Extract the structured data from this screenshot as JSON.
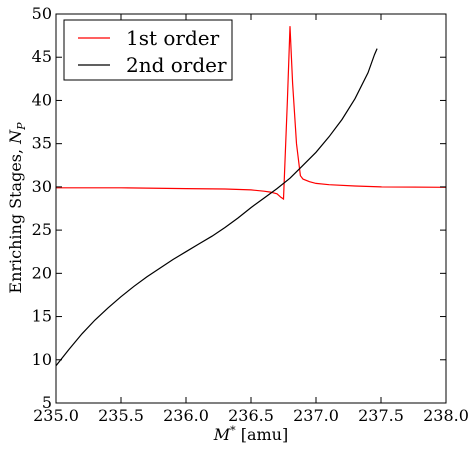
{
  "chart_data": {
    "type": "line",
    "title": "",
    "xlabel": {
      "symbol": "M",
      "sup": "*",
      "unit": " [amu]"
    },
    "ylabel": {
      "text": "Enriching Stages, ",
      "symbol": "N",
      "sub": "P"
    },
    "xlim": [
      235.0,
      238.0
    ],
    "ylim": [
      5,
      50
    ],
    "xticks": [
      235.0,
      235.5,
      236.0,
      236.5,
      237.0,
      237.5,
      238.0
    ],
    "xtick_labels": [
      "235.0",
      "235.5",
      "236.0",
      "236.5",
      "237.0",
      "237.5",
      "238.0"
    ],
    "yticks": [
      5,
      10,
      15,
      20,
      25,
      30,
      35,
      40,
      45,
      50
    ],
    "ytick_labels": [
      "5",
      "10",
      "15",
      "20",
      "25",
      "30",
      "35",
      "40",
      "45",
      "50"
    ],
    "grid": false,
    "legend_position": "top-left",
    "series": [
      {
        "name": "1st order",
        "color": "#ff0000",
        "x": [
          235.0,
          235.5,
          236.0,
          236.3,
          236.5,
          236.6,
          236.65,
          236.7,
          236.73,
          236.75,
          236.78,
          236.8,
          236.82,
          236.85,
          236.88,
          236.9,
          236.95,
          237.0,
          237.1,
          237.3,
          237.5,
          238.0
        ],
        "y": [
          29.9,
          29.9,
          29.8,
          29.75,
          29.65,
          29.5,
          29.4,
          29.2,
          28.8,
          28.6,
          40.0,
          48.6,
          42.0,
          35.0,
          31.3,
          30.9,
          30.6,
          30.4,
          30.25,
          30.1,
          30.0,
          29.95
        ]
      },
      {
        "name": "2nd order",
        "color": "#000000",
        "x": [
          235.0,
          235.1,
          235.2,
          235.3,
          235.4,
          235.5,
          235.6,
          235.7,
          235.8,
          235.9,
          236.0,
          236.1,
          236.2,
          236.3,
          236.4,
          236.5,
          236.6,
          236.7,
          236.8,
          236.9,
          237.0,
          237.1,
          237.2,
          237.3,
          237.4,
          237.45,
          237.47
        ],
        "y": [
          9.3,
          11.2,
          13.0,
          14.6,
          16.0,
          17.3,
          18.5,
          19.6,
          20.6,
          21.6,
          22.5,
          23.4,
          24.3,
          25.3,
          26.4,
          27.6,
          28.7,
          29.8,
          31.0,
          32.5,
          34.0,
          35.8,
          37.8,
          40.2,
          43.2,
          45.3,
          46.0
        ]
      }
    ]
  }
}
